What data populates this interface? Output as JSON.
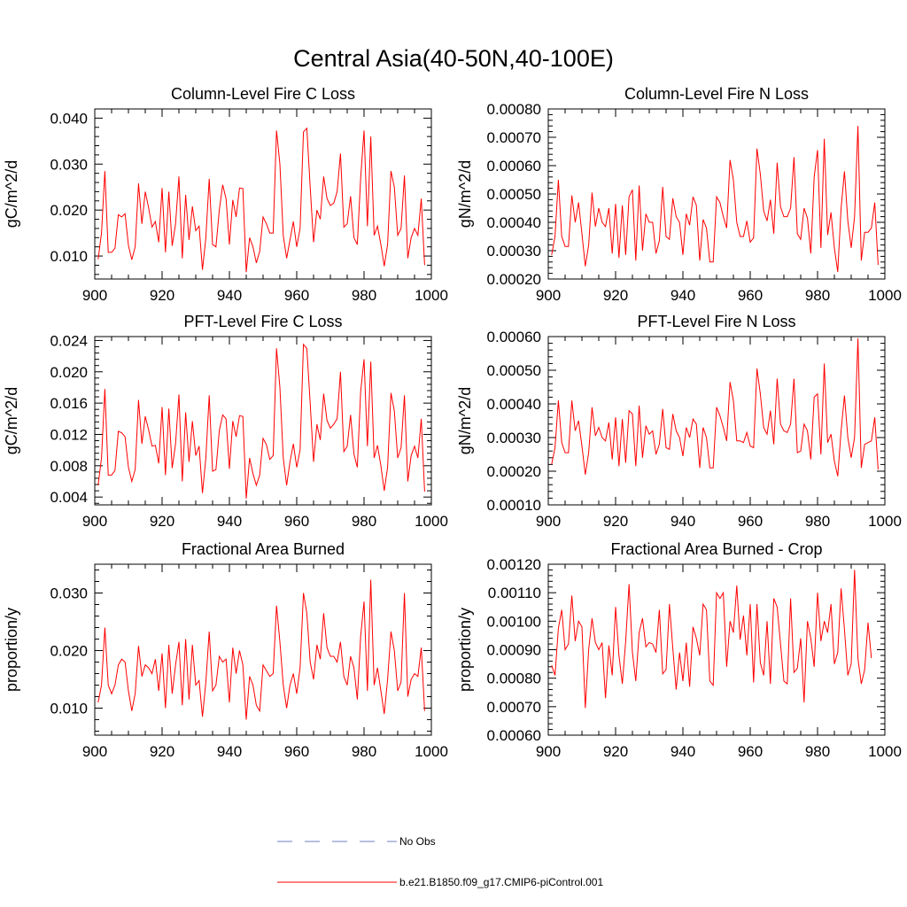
{
  "title": "Central Asia(40-50N,40-100E)",
  "chart_data": [
    {
      "type": "line",
      "title": "Column-Level Fire C Loss",
      "ylabel": "gC/m^2/d",
      "xlim": [
        900,
        1000
      ],
      "ylim": [
        0.005,
        0.042
      ],
      "xticks": [
        "900",
        "920",
        "940",
        "960",
        "980",
        "1000"
      ],
      "yticks": [
        "0.010",
        "0.020",
        "0.030",
        "0.040"
      ],
      "color": "#ff0000",
      "x_start": 901,
      "values": [
        0.0093,
        0.015,
        0.0285,
        0.0108,
        0.0108,
        0.0117,
        0.019,
        0.0185,
        0.0192,
        0.0123,
        0.0092,
        0.012,
        0.0258,
        0.017,
        0.024,
        0.0205,
        0.0163,
        0.0175,
        0.013,
        0.0248,
        0.0108,
        0.024,
        0.0122,
        0.017,
        0.0273,
        0.0095,
        0.0233,
        0.0135,
        0.0208,
        0.0155,
        0.0165,
        0.007,
        0.014,
        0.0268,
        0.0125,
        0.012,
        0.02,
        0.0255,
        0.0225,
        0.0125,
        0.0222,
        0.0185,
        0.0248,
        0.0247,
        0.0065,
        0.014,
        0.012,
        0.0085,
        0.011,
        0.0185,
        0.017,
        0.015,
        0.015,
        0.0373,
        0.03,
        0.0145,
        0.0095,
        0.0135,
        0.0175,
        0.012,
        0.016,
        0.037,
        0.0378,
        0.025,
        0.013,
        0.02,
        0.018,
        0.0273,
        0.0225,
        0.021,
        0.0215,
        0.024,
        0.0323,
        0.0163,
        0.017,
        0.023,
        0.014,
        0.0125,
        0.027,
        0.0373,
        0.0165,
        0.036,
        0.0145,
        0.0165,
        0.0125,
        0.0078,
        0.0125,
        0.0285,
        0.025,
        0.0145,
        0.016,
        0.0275,
        0.0095,
        0.014,
        0.016,
        0.0145,
        0.0225,
        0.008
      ]
    },
    {
      "type": "line",
      "title": "Column-Level Fire N Loss",
      "ylabel": "gN/m^2/d",
      "xlim": [
        900,
        1000
      ],
      "ylim": [
        0.0002,
        0.0008
      ],
      "xticks": [
        "900",
        "920",
        "940",
        "960",
        "980",
        "1000"
      ],
      "yticks": [
        "0.00020",
        "0.00030",
        "0.00040",
        "0.00050",
        "0.00060",
        "0.00070",
        "0.00080"
      ],
      "color": "#ff0000",
      "x_start": 901,
      "values": [
        0.000285,
        0.00035,
        0.00055,
        0.00035,
        0.000315,
        0.000315,
        0.000495,
        0.0004,
        0.00047,
        0.00036,
        0.000245,
        0.00032,
        0.000505,
        0.000385,
        0.00045,
        0.0004,
        0.000385,
        0.00045,
        0.00029,
        0.000465,
        0.000275,
        0.00046,
        0.000285,
        0.00049,
        0.000515,
        0.000265,
        0.00053,
        0.0003,
        0.00043,
        0.0004,
        0.0004,
        0.00029,
        0.000335,
        0.000525,
        0.00035,
        0.00034,
        0.000485,
        0.00042,
        0.0004,
        0.000285,
        0.00043,
        0.00039,
        0.00049,
        0.00046,
        0.000265,
        0.00041,
        0.00038,
        0.00026,
        0.00026,
        0.00049,
        0.00047,
        0.00042,
        0.00038,
        0.00062,
        0.00055,
        0.0004,
        0.00035,
        0.00035,
        0.000405,
        0.00033,
        0.000345,
        0.00066,
        0.00057,
        0.00044,
        0.000405,
        0.00048,
        0.00036,
        0.00061,
        0.000455,
        0.00042,
        0.00042,
        0.00045,
        0.00063,
        0.00036,
        0.00034,
        0.00045,
        0.000415,
        0.00029,
        0.00056,
        0.000655,
        0.00031,
        0.000695,
        0.000355,
        0.000435,
        0.00031,
        0.000225,
        0.00045,
        0.00058,
        0.000405,
        0.00031,
        0.00042,
        0.00074,
        0.000265,
        0.000365,
        0.000365,
        0.00038,
        0.00047,
        0.00025
      ]
    },
    {
      "type": "line",
      "title": "PFT-Level Fire C Loss",
      "ylabel": "gC/m^2/d",
      "xlim": [
        900,
        1000
      ],
      "ylim": [
        0.003,
        0.0245
      ],
      "xticks": [
        "900",
        "920",
        "940",
        "960",
        "980",
        "1000"
      ],
      "yticks": [
        "0.004",
        "0.008",
        "0.012",
        "0.016",
        "0.020",
        "0.024"
      ],
      "color": "#ff0000",
      "x_start": 901,
      "values": [
        0.0055,
        0.009,
        0.0178,
        0.0068,
        0.0068,
        0.0074,
        0.0124,
        0.0122,
        0.0117,
        0.0078,
        0.006,
        0.0075,
        0.0164,
        0.0108,
        0.0143,
        0.0126,
        0.0105,
        0.0106,
        0.0083,
        0.0155,
        0.0068,
        0.0153,
        0.0077,
        0.0108,
        0.0171,
        0.006,
        0.0148,
        0.0085,
        0.0137,
        0.0093,
        0.0105,
        0.0045,
        0.009,
        0.017,
        0.0073,
        0.0075,
        0.0125,
        0.0145,
        0.014,
        0.0076,
        0.0137,
        0.0117,
        0.0144,
        0.0143,
        0.0038,
        0.009,
        0.007,
        0.0055,
        0.0068,
        0.0115,
        0.0107,
        0.0088,
        0.0093,
        0.023,
        0.018,
        0.009,
        0.0055,
        0.0085,
        0.0108,
        0.0078,
        0.01,
        0.0235,
        0.023,
        0.016,
        0.0085,
        0.0133,
        0.0113,
        0.0172,
        0.0138,
        0.0128,
        0.0133,
        0.014,
        0.02,
        0.0098,
        0.0105,
        0.0145,
        0.0095,
        0.0078,
        0.0175,
        0.0216,
        0.0105,
        0.0213,
        0.009,
        0.0106,
        0.008,
        0.0048,
        0.0078,
        0.0173,
        0.015,
        0.009,
        0.0103,
        0.017,
        0.006,
        0.0093,
        0.0105,
        0.009,
        0.014,
        0.0047
      ]
    },
    {
      "type": "line",
      "title": "PFT-Level Fire N Loss",
      "ylabel": "gN/m^2/d",
      "xlim": [
        900,
        1000
      ],
      "ylim": [
        0.0001,
        0.0006
      ],
      "xticks": [
        "900",
        "920",
        "940",
        "960",
        "980",
        "1000"
      ],
      "yticks": [
        "0.00010",
        "0.00020",
        "0.00030",
        "0.00040",
        "0.00050",
        "0.00060"
      ],
      "color": "#ff0000",
      "x_start": 901,
      "values": [
        0.00022,
        0.00027,
        0.00041,
        0.000285,
        0.000255,
        0.000255,
        0.00041,
        0.00032,
        0.00035,
        0.000275,
        0.00019,
        0.000255,
        0.00039,
        0.000305,
        0.00033,
        0.0003,
        0.00029,
        0.000345,
        0.000235,
        0.00036,
        0.000215,
        0.000355,
        0.000225,
        0.00038,
        0.00037,
        0.000215,
        0.000395,
        0.00024,
        0.000335,
        0.00031,
        0.00032,
        0.00025,
        0.00028,
        0.000385,
        0.00027,
        0.000265,
        0.00037,
        0.00032,
        0.0003,
        0.000245,
        0.00033,
        0.0003,
        0.000355,
        0.00034,
        0.00021,
        0.00033,
        0.0003,
        0.00021,
        0.00021,
        0.00039,
        0.000365,
        0.00033,
        0.00029,
        0.000465,
        0.00041,
        0.00029,
        0.00029,
        0.000285,
        0.000315,
        0.000275,
        0.00027,
        0.000505,
        0.00043,
        0.00033,
        0.00031,
        0.00038,
        0.00028,
        0.000475,
        0.00034,
        0.00032,
        0.000315,
        0.00034,
        0.000475,
        0.000255,
        0.00026,
        0.00034,
        0.00032,
        0.000235,
        0.00042,
        0.00043,
        0.00025,
        0.00052,
        0.000285,
        0.00031,
        0.00023,
        0.000185,
        0.00032,
        0.000425,
        0.0003,
        0.00024,
        0.0003,
        0.000595,
        0.00021,
        0.00028,
        0.000285,
        0.00029,
        0.00036,
        0.000205
      ]
    },
    {
      "type": "line",
      "title": "Fractional Area Burned",
      "ylabel": "proportion/y",
      "xlim": [
        900,
        1000
      ],
      "ylim": [
        0.0053,
        0.035
      ],
      "xticks": [
        "900",
        "920",
        "940",
        "960",
        "980",
        "1000"
      ],
      "yticks": [
        "0.010",
        "0.020",
        "0.030"
      ],
      "color": "#ff0000",
      "x_start": 901,
      "values": [
        0.011,
        0.014,
        0.024,
        0.014,
        0.0125,
        0.014,
        0.0175,
        0.0185,
        0.018,
        0.013,
        0.0095,
        0.0125,
        0.0208,
        0.0155,
        0.0175,
        0.017,
        0.016,
        0.0185,
        0.013,
        0.0195,
        0.01,
        0.021,
        0.0125,
        0.0175,
        0.0215,
        0.0105,
        0.022,
        0.0115,
        0.021,
        0.014,
        0.0148,
        0.0085,
        0.0145,
        0.0233,
        0.013,
        0.014,
        0.019,
        0.018,
        0.0185,
        0.011,
        0.0205,
        0.016,
        0.02,
        0.0175,
        0.008,
        0.0155,
        0.014,
        0.0105,
        0.0095,
        0.0175,
        0.0165,
        0.0155,
        0.016,
        0.0278,
        0.0215,
        0.014,
        0.01,
        0.014,
        0.016,
        0.0125,
        0.017,
        0.03,
        0.0265,
        0.018,
        0.015,
        0.021,
        0.0185,
        0.0265,
        0.0205,
        0.019,
        0.019,
        0.018,
        0.0215,
        0.0155,
        0.014,
        0.019,
        0.017,
        0.0115,
        0.0225,
        0.0285,
        0.013,
        0.0323,
        0.014,
        0.017,
        0.013,
        0.009,
        0.015,
        0.0233,
        0.02,
        0.013,
        0.0145,
        0.03,
        0.012,
        0.015,
        0.016,
        0.0155,
        0.0205,
        0.0095
      ]
    },
    {
      "type": "line",
      "title": "Fractional Area Burned - Crop",
      "ylabel": "proportion/y",
      "xlim": [
        900,
        1000
      ],
      "ylim": [
        0.0006,
        0.0012
      ],
      "xticks": [
        "900",
        "920",
        "940",
        "960",
        "980",
        "1000"
      ],
      "yticks": [
        "0.00060",
        "0.00070",
        "0.00080",
        "0.00090",
        "0.00100",
        "0.00110",
        "0.00120"
      ],
      "color": "#ff0000",
      "x_start": 901,
      "values": [
        0.000845,
        0.00081,
        0.000975,
        0.00104,
        0.0009,
        0.00092,
        0.00109,
        0.00093,
        0.001,
        0.00098,
        0.000695,
        0.0009,
        0.00101,
        0.000925,
        0.0009,
        0.000925,
        0.00073,
        0.000915,
        0.00081,
        0.00105,
        0.00088,
        0.00078,
        0.00093,
        0.00113,
        0.00089,
        0.00079,
        0.00096,
        0.00101,
        0.00091,
        0.000925,
        0.00092,
        0.00089,
        0.00104,
        0.000815,
        0.00083,
        0.00106,
        0.000905,
        0.00076,
        0.00089,
        0.00079,
        0.000925,
        0.00077,
        0.00098,
        0.00094,
        0.00088,
        0.00106,
        0.00104,
        0.00079,
        0.000775,
        0.0011,
        0.00108,
        0.0011,
        0.00084,
        0.001,
        0.00096,
        0.001125,
        0.000935,
        0.00102,
        0.00088,
        0.00106,
        0.000785,
        0.00106,
        0.000855,
        0.00081,
        0.001,
        0.00078,
        0.00108,
        0.00105,
        0.00092,
        0.00079,
        0.00078,
        0.00108,
        0.00082,
        0.000835,
        0.00094,
        0.000715,
        0.001,
        0.00094,
        0.00084,
        0.0011,
        0.00093,
        0.001,
        0.00096,
        0.00106,
        0.00085,
        0.00089,
        0.001115,
        0.00097,
        0.00081,
        0.00085,
        0.00118,
        0.00087,
        0.00078,
        0.00083,
        0.000995,
        0.00087
      ]
    }
  ],
  "legend": {
    "items": [
      {
        "label": "No Obs",
        "color": "#6f7fbf",
        "style": "dashed"
      },
      {
        "label": "b.e21.B1850.f09_g17.CMIP6-piControl.001",
        "color": "#ff0000",
        "style": "solid"
      }
    ]
  }
}
